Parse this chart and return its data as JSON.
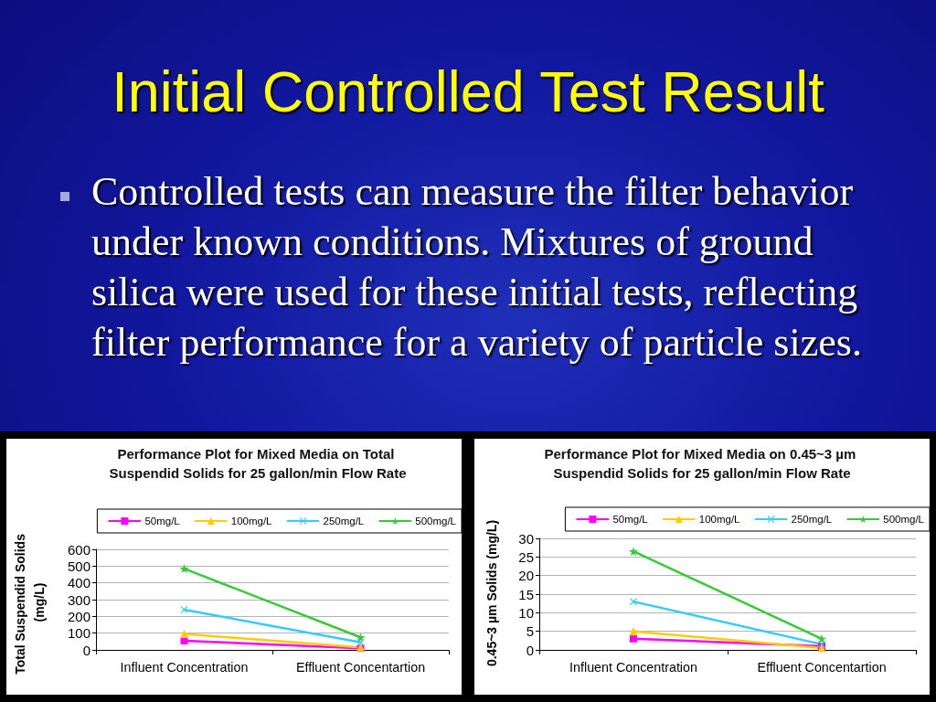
{
  "chart_data": [
    {
      "type": "other",
      "title": "Initial Controlled Test Result",
      "annotations": [
        "Controlled tests can measure the filter behavior under known conditions. Mixtures of ground silica were used for these initial tests, reflecting filter performance for a variety of particle sizes."
      ]
    },
    {
      "type": "line",
      "title": "Performance Plot for Mixed Media on Total Suspendid Solids for 25 gallon/min Flow Rate",
      "ylabel": "Total Suspendid Solids (mg/L)",
      "categories": [
        "Influent Concentration",
        "Effluent Concentartion"
      ],
      "series": [
        {
          "name": "50mg/L",
          "color": "#ff00ff",
          "marker": "square",
          "values": [
            55,
            10
          ]
        },
        {
          "name": "100mg/L",
          "color": "#ffcc00",
          "marker": "triangle",
          "values": [
            95,
            15
          ]
        },
        {
          "name": "250mg/L",
          "color": "#33ccff",
          "marker": "cross",
          "values": [
            240,
            45
          ]
        },
        {
          "name": "500mg/L",
          "color": "#33cc33",
          "marker": "star",
          "values": [
            485,
            75
          ]
        }
      ],
      "ylim": [
        0,
        600
      ],
      "yticks": [
        0,
        100,
        200,
        300,
        400,
        500,
        600
      ],
      "grid": "y",
      "legend": "top right"
    },
    {
      "type": "line",
      "title": "Performance Plot for Mixed Media on 0.45~3 µm Suspendid Solids for 25 gallon/min Flow Rate",
      "ylabel": "0.45~3 µm Solids (mg/L)",
      "categories": [
        "Influent Concentration",
        "Effluent Concentartion"
      ],
      "series": [
        {
          "name": "50mg/L",
          "color": "#ff00ff",
          "marker": "square",
          "values": [
            3,
            1
          ]
        },
        {
          "name": "100mg/L",
          "color": "#ffcc00",
          "marker": "triangle",
          "values": [
            5,
            0.5
          ]
        },
        {
          "name": "250mg/L",
          "color": "#33ccff",
          "marker": "cross",
          "values": [
            13,
            1.5
          ]
        },
        {
          "name": "500mg/L",
          "color": "#33cc33",
          "marker": "star",
          "values": [
            26.5,
            3
          ]
        }
      ],
      "ylim": [
        0,
        30
      ],
      "yticks": [
        0,
        5,
        10,
        15,
        20,
        25,
        30
      ],
      "grid": "y",
      "legend": "top right"
    }
  ]
}
